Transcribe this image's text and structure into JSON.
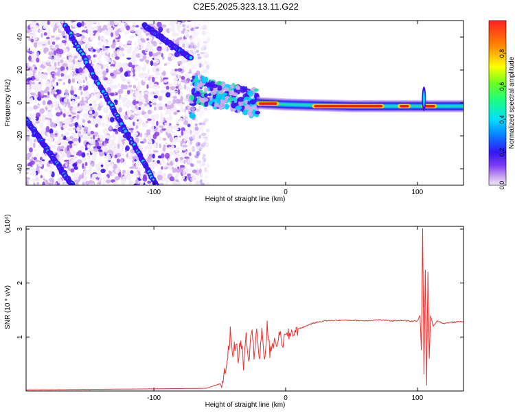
{
  "title": "C2E5.2025.323.13.11.G22",
  "colors": {
    "snr_line": "#e8302e",
    "spectrogram_colormap": [
      "#f4ecfa",
      "#cfa9ef",
      "#8a3cf0",
      "#3c12f5",
      "#0a5cff",
      "#00d0ff",
      "#27e0a0",
      "#3dff50",
      "#c8ff20",
      "#ffd000",
      "#ff7a00",
      "#ff1a1a"
    ]
  },
  "chart_data": [
    {
      "type": "heatmap",
      "name": "spectrogram",
      "xlabel": "Height of straight line (km)",
      "ylabel": "Frequency (Hz)",
      "xlim": [
        -197,
        135
      ],
      "ylim": [
        -50,
        50
      ],
      "x_ticks": [
        -100,
        0,
        100
      ],
      "x_tick_labels": [
        "-100",
        "0",
        "100"
      ],
      "y_ticks": [
        -40,
        -20,
        0,
        20,
        40
      ],
      "y_tick_labels": [
        "-40",
        "-20",
        "0",
        "20",
        "40"
      ],
      "noise_region_x": [
        -197,
        -57
      ],
      "diagonal_tracks": [
        {
          "x": [
            -167,
            -98
          ],
          "y": [
            47,
            -50
          ]
        },
        {
          "x": [
            -197,
            -162
          ],
          "y": [
            -10,
            -50
          ]
        },
        {
          "x": [
            -107,
            -72
          ],
          "y": [
            47,
            27
          ]
        }
      ],
      "carrier_band": {
        "x": [
          -70,
          135
        ],
        "center_hz": [
          [
            -70,
            8
          ],
          [
            -55,
            6
          ],
          [
            -45,
            4
          ],
          [
            -35,
            3
          ],
          [
            -25,
            0
          ],
          [
            0,
            -1
          ],
          [
            50,
            -2
          ],
          [
            100,
            -2
          ],
          [
            135,
            -2
          ]
        ],
        "peak_segments_x": [
          [
            -22,
            -5
          ],
          [
            20,
            75
          ],
          [
            85,
            95
          ],
          [
            103,
            115
          ]
        ],
        "spike_x": 105,
        "spike_hz": [
          -5,
          10
        ]
      },
      "colorbar": {
        "label": "Normalized spectral amplitude",
        "range": [
          0,
          1
        ],
        "ticks": [
          0,
          0.2,
          0.4,
          0.6,
          0.8
        ],
        "tick_labels": [
          "0.0",
          "0.2",
          "0.4",
          "0.6",
          "0.8"
        ]
      }
    },
    {
      "type": "line",
      "name": "snr",
      "xlabel": "Height of straight line (km)",
      "ylabel": "SNR (10 * v/v)",
      "multiplier_label": "(x10⁴)",
      "xlim": [
        -197,
        135
      ],
      "ylim": [
        0,
        3.05
      ],
      "x_ticks": [
        -100,
        0,
        100
      ],
      "x_tick_labels": [
        "-100",
        "0",
        "100"
      ],
      "y_ticks": [
        1,
        2,
        3
      ],
      "y_tick_labels": [
        "1",
        "2",
        "3"
      ],
      "series": [
        {
          "x": [
            -197,
            -150,
            -100,
            -60,
            -48,
            -44,
            -42,
            -40,
            -38,
            -36,
            -34,
            -32,
            -30,
            -28,
            -26,
            -24,
            -22,
            -20,
            -18,
            -16,
            -14,
            -12,
            -10,
            -8,
            -6,
            -4,
            -2,
            0,
            3,
            6,
            10,
            15,
            20,
            25,
            30,
            40,
            50,
            60,
            70,
            80,
            90,
            95,
            100,
            102,
            103,
            104,
            105,
            106,
            107,
            108,
            109,
            110,
            112,
            115,
            120,
            125,
            130,
            135
          ],
          "y": [
            0.02,
            0.03,
            0.04,
            0.05,
            0.15,
            0.6,
            1.1,
            0.7,
            0.9,
            0.6,
            1.0,
            0.5,
            1.1,
            0.6,
            1.15,
            0.7,
            1.2,
            0.55,
            1.05,
            0.6,
            1.2,
            0.7,
            0.9,
            0.85,
            0.95,
            1.0,
            0.9,
            1.0,
            1.05,
            1.1,
            1.15,
            1.2,
            1.25,
            1.28,
            1.3,
            1.31,
            1.31,
            1.3,
            1.32,
            1.3,
            1.31,
            1.29,
            1.3,
            1.4,
            0.75,
            3.02,
            0.3,
            2.25,
            0.1,
            2.2,
            0.6,
            1.4,
            1.2,
            1.3,
            1.25,
            1.27,
            1.28,
            1.29
          ]
        }
      ]
    }
  ]
}
